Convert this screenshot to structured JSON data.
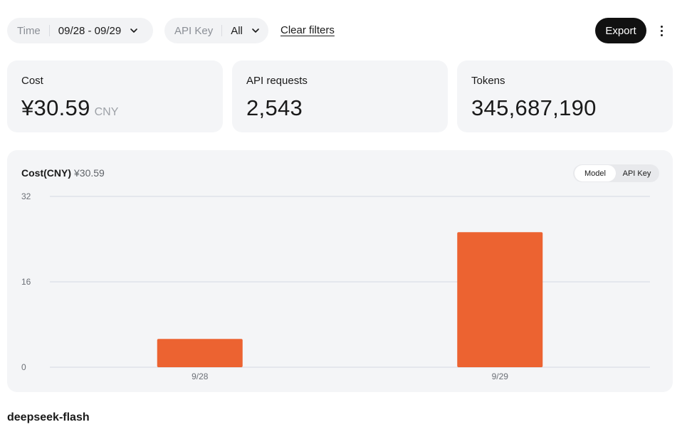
{
  "filters": {
    "time": {
      "label": "Time",
      "value": "09/28 - 09/29"
    },
    "api_key": {
      "label": "API Key",
      "value": "All"
    },
    "clear_label": "Clear filters",
    "export_label": "Export",
    "more_icon": "more-vertical-icon"
  },
  "stats": {
    "cost": {
      "label": "Cost",
      "value": "¥30.59",
      "unit": "CNY"
    },
    "requests": {
      "label": "API requests",
      "value": "2,543"
    },
    "tokens": {
      "label": "Tokens",
      "value": "345,687,190"
    }
  },
  "chart_panel": {
    "title": "Cost(CNY)",
    "total": "¥30.59",
    "toggle": {
      "options": [
        "Model",
        "API Key"
      ],
      "selected": "Model"
    }
  },
  "chart_data": {
    "type": "bar",
    "categories": [
      "9/28",
      "9/29"
    ],
    "values": [
      5.3,
      25.3
    ],
    "ylim": [
      0,
      32
    ],
    "yticks": [
      0,
      16,
      32
    ],
    "grid": true,
    "bar_color": "#ec6331"
  },
  "model_section": {
    "heading": "deepseek-flash"
  },
  "colors": {
    "accent": "#ec6331",
    "button_dark": "#111111",
    "card_bg": "#f4f5f7"
  }
}
